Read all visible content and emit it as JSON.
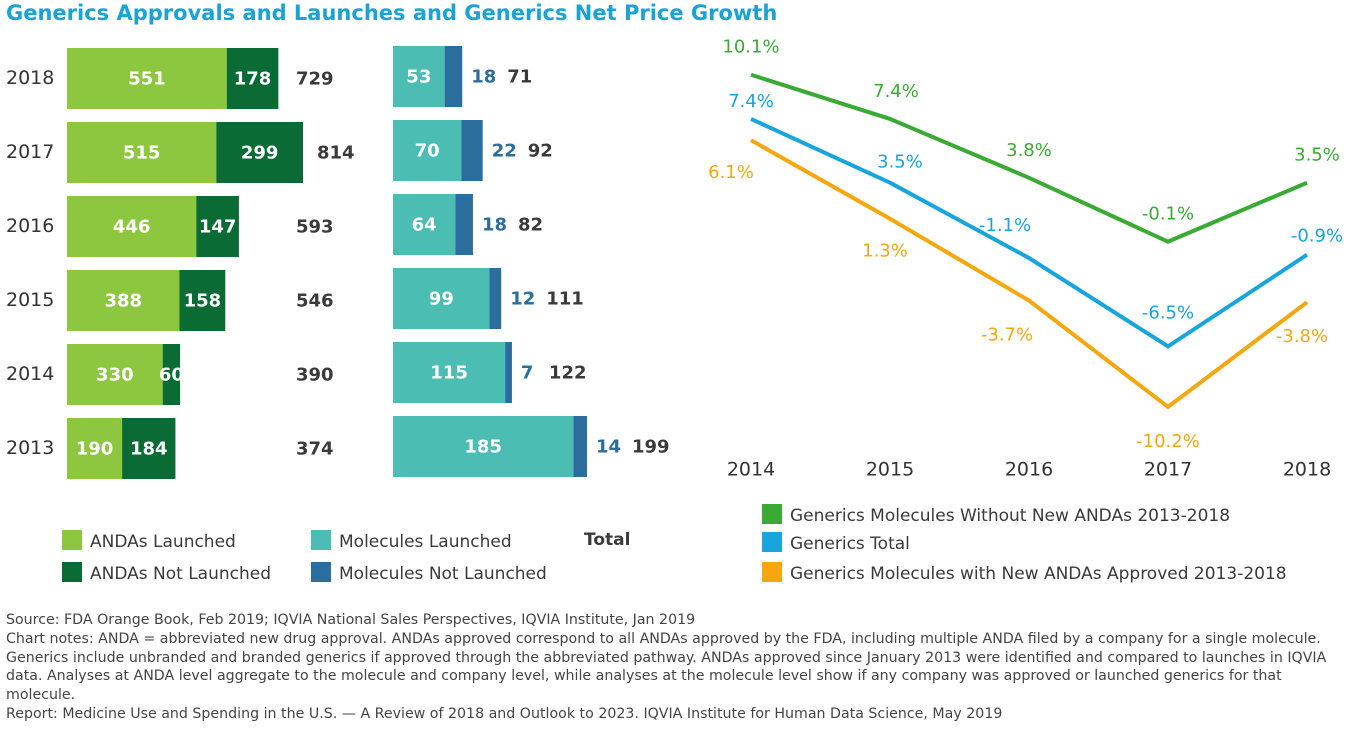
{
  "title": "Generics Approvals and Launches and Generics Net Price Growth",
  "colors": {
    "title": "#1aa3d6",
    "andas_launched": "#8dc63f",
    "andas_not_launched": "#0a6b35",
    "molecules_launched": "#4cbdb2",
    "molecules_not_launched": "#2b6e9e",
    "without_new_andas": "#3aaa35",
    "generics_total": "#17a5dc",
    "with_new_andas": "#f5a70f"
  },
  "legend_left": {
    "andas_launched": "ANDAs Launched",
    "andas_not_launched": "ANDAs Not Launched",
    "molecules_launched": "Molecules Launched",
    "molecules_not_launched": "Molecules Not Launched",
    "total": "Total"
  },
  "legend_right": {
    "without_new_andas": "Generics Molecules Without New ANDAs 2013-2018",
    "generics_total": "Generics Total",
    "with_new_andas": "Generics Molecules with New ANDAs Approved 2013-2018"
  },
  "chart_data": [
    {
      "type": "bar",
      "orientation": "horizontal",
      "stacked": true,
      "categories": [
        "2018",
        "2017",
        "2016",
        "2015",
        "2014",
        "2013"
      ],
      "series": [
        {
          "name": "ANDAs Launched",
          "values": [
            551,
            515,
            446,
            388,
            330,
            190
          ]
        },
        {
          "name": "ANDAs Not Launched",
          "values": [
            178,
            299,
            147,
            158,
            60,
            184
          ]
        }
      ],
      "totals": [
        729,
        814,
        593,
        546,
        390,
        374
      ]
    },
    {
      "type": "bar",
      "orientation": "horizontal",
      "stacked": true,
      "categories": [
        "2018",
        "2017",
        "2016",
        "2015",
        "2014",
        "2013"
      ],
      "series": [
        {
          "name": "Molecules Launched",
          "values": [
            53,
            70,
            64,
            99,
            115,
            185
          ]
        },
        {
          "name": "Molecules Not Launched",
          "values": [
            18,
            22,
            18,
            12,
            7,
            14
          ]
        }
      ],
      "totals": [
        71,
        92,
        82,
        111,
        122,
        199
      ]
    },
    {
      "type": "line",
      "x": [
        "2014",
        "2015",
        "2016",
        "2017",
        "2018"
      ],
      "series": [
        {
          "name": "Generics Molecules Without New ANDAs 2013-2018",
          "values": [
            10.1,
            7.4,
            3.8,
            -0.1,
            3.5
          ],
          "labels": [
            "10.1%",
            "7.4%",
            "3.8%",
            "-0.1%",
            "3.5%"
          ]
        },
        {
          "name": "Generics Total",
          "values": [
            7.4,
            3.5,
            -1.1,
            -6.5,
            -0.9
          ],
          "labels": [
            "7.4%",
            "3.5%",
            "-1.1%",
            "-6.5%",
            "-0.9%"
          ]
        },
        {
          "name": "Generics Molecules with New ANDAs Approved 2013-2018",
          "values": [
            6.1,
            1.3,
            -3.7,
            -10.2,
            -3.8
          ],
          "labels": [
            "6.1%",
            "1.3%",
            "-3.7%",
            "-10.2%",
            "-3.8%"
          ]
        }
      ],
      "ylim": [
        -11,
        11
      ],
      "grid": false
    }
  ],
  "footer": {
    "source": "Source: FDA Orange Book, Feb 2019; IQVIA National Sales Perspectives, IQVIA Institute, Jan 2019",
    "notes": "Chart notes: ANDA = abbreviated new drug approval. ANDAs approved correspond to all ANDAs approved by the FDA, including multiple ANDA filed by a company for a single molecule. Generics include unbranded and branded generics if approved through the abbreviated pathway. ANDAs approved since January 2013 were identified and compared to launches in IQVIA data. Analyses at ANDA level aggregate to the molecule and company level, while analyses at the molecule level show if any company was approved or launched generics for that molecule.",
    "report": "Report: Medicine Use and Spending in the U.S. — A Review of 2018 and Outlook to 2023. IQVIA Institute for Human Data Science, May 2019"
  }
}
